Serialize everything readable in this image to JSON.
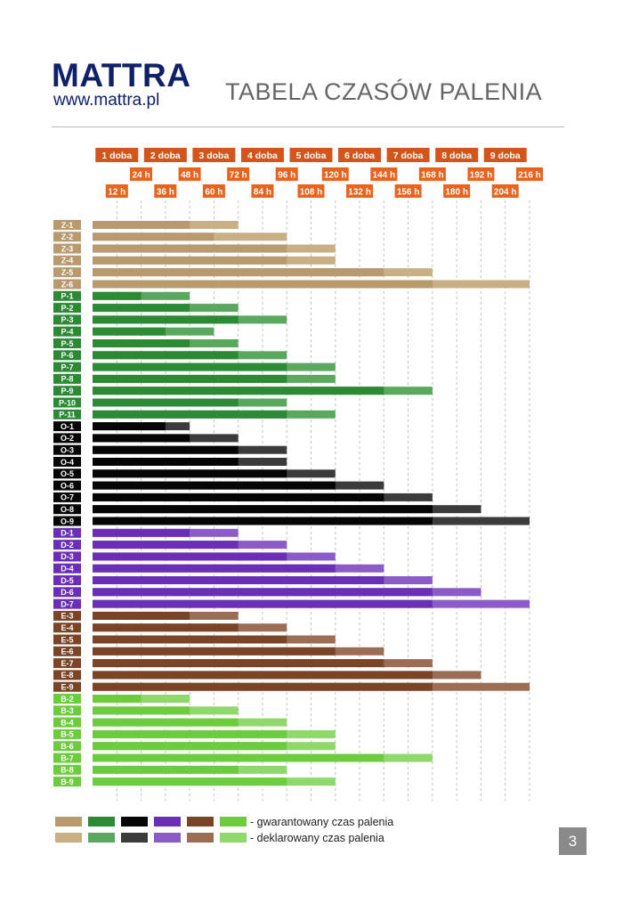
{
  "header": {
    "logo": "MATTRA",
    "url": "www.mattra.pl",
    "title": "TABELA CZASÓW PALENIA"
  },
  "page_number": "3",
  "chart_data": {
    "type": "bar",
    "orientation": "horizontal",
    "stacked": true,
    "xlim": [
      0,
      216
    ],
    "unit": "h",
    "axis_day_labels": [
      "1 doba",
      "2 doba",
      "3 doba",
      "4 doba",
      "5 doba",
      "6 doba",
      "7 doba",
      "8 doba",
      "9 doba"
    ],
    "axis_hour_labels_row1": [
      "24 h",
      "48 h",
      "72 h",
      "96 h",
      "120 h",
      "144 h",
      "168 h",
      "192 h",
      "216 h"
    ],
    "axis_hour_labels_row2": [
      "12 h",
      "36 h",
      "60 h",
      "84 h",
      "108 h",
      "132 h",
      "156 h",
      "180 h",
      "204 h"
    ],
    "grid": true,
    "legend": {
      "placement": "bottom",
      "guaranteed_label": "- gwarantowany czas palenia",
      "declared_label": "- deklarowany czas palenia"
    },
    "groups": [
      {
        "name": "Z",
        "color_guaranteed": "#b99a6e",
        "color_declared": "#c9b084",
        "label_color": "#b99a6e"
      },
      {
        "name": "P",
        "color_guaranteed": "#2c8a35",
        "color_declared": "#5aa85e",
        "label_color": "#2c8a35"
      },
      {
        "name": "O",
        "color_guaranteed": "#050505",
        "color_declared": "#3b3b3b",
        "label_color": "#050505"
      },
      {
        "name": "D",
        "color_guaranteed": "#6a2fb6",
        "color_declared": "#8b5cc8",
        "label_color": "#6a2fb6"
      },
      {
        "name": "E",
        "color_guaranteed": "#7a4427",
        "color_declared": "#9c6d55",
        "label_color": "#7a4427"
      },
      {
        "name": "B",
        "color_guaranteed": "#6ccc3d",
        "color_declared": "#8ed86c",
        "label_color": "#6ccc3d"
      }
    ],
    "series": [
      {
        "name": "Z-1",
        "group": 0,
        "guaranteed": 48,
        "declared": 72
      },
      {
        "name": "Z-2",
        "group": 0,
        "guaranteed": 60,
        "declared": 96
      },
      {
        "name": "Z-3",
        "group": 0,
        "guaranteed": 96,
        "declared": 120
      },
      {
        "name": "Z-4",
        "group": 0,
        "guaranteed": 96,
        "declared": 120
      },
      {
        "name": "Z-5",
        "group": 0,
        "guaranteed": 144,
        "declared": 168
      },
      {
        "name": "Z-6",
        "group": 0,
        "guaranteed": 168,
        "declared": 216
      },
      {
        "name": "P-1",
        "group": 1,
        "guaranteed": 24,
        "declared": 48
      },
      {
        "name": "P-2",
        "group": 1,
        "guaranteed": 48,
        "declared": 72
      },
      {
        "name": "P-3",
        "group": 1,
        "guaranteed": 72,
        "declared": 96
      },
      {
        "name": "P-4",
        "group": 1,
        "guaranteed": 36,
        "declared": 60
      },
      {
        "name": "P-5",
        "group": 1,
        "guaranteed": 48,
        "declared": 72
      },
      {
        "name": "P-6",
        "group": 1,
        "guaranteed": 72,
        "declared": 96
      },
      {
        "name": "P-7",
        "group": 1,
        "guaranteed": 96,
        "declared": 120
      },
      {
        "name": "P-8",
        "group": 1,
        "guaranteed": 96,
        "declared": 120
      },
      {
        "name": "P-9",
        "group": 1,
        "guaranteed": 144,
        "declared": 168
      },
      {
        "name": "P-10",
        "group": 1,
        "guaranteed": 72,
        "declared": 96
      },
      {
        "name": "P-11",
        "group": 1,
        "guaranteed": 96,
        "declared": 120
      },
      {
        "name": "O-1",
        "group": 2,
        "guaranteed": 36,
        "declared": 48
      },
      {
        "name": "O-2",
        "group": 2,
        "guaranteed": 48,
        "declared": 72
      },
      {
        "name": "O-3",
        "group": 2,
        "guaranteed": 72,
        "declared": 96
      },
      {
        "name": "O-4",
        "group": 2,
        "guaranteed": 72,
        "declared": 96
      },
      {
        "name": "O-5",
        "group": 2,
        "guaranteed": 96,
        "declared": 120
      },
      {
        "name": "O-6",
        "group": 2,
        "guaranteed": 120,
        "declared": 144
      },
      {
        "name": "O-7",
        "group": 2,
        "guaranteed": 144,
        "declared": 168
      },
      {
        "name": "O-8",
        "group": 2,
        "guaranteed": 168,
        "declared": 192
      },
      {
        "name": "O-9",
        "group": 2,
        "guaranteed": 168,
        "declared": 216
      },
      {
        "name": "D-1",
        "group": 3,
        "guaranteed": 48,
        "declared": 72
      },
      {
        "name": "D-2",
        "group": 3,
        "guaranteed": 72,
        "declared": 96
      },
      {
        "name": "D-3",
        "group": 3,
        "guaranteed": 96,
        "declared": 120
      },
      {
        "name": "D-4",
        "group": 3,
        "guaranteed": 120,
        "declared": 144
      },
      {
        "name": "D-5",
        "group": 3,
        "guaranteed": 144,
        "declared": 168
      },
      {
        "name": "D-6",
        "group": 3,
        "guaranteed": 168,
        "declared": 192
      },
      {
        "name": "D-7",
        "group": 3,
        "guaranteed": 168,
        "declared": 216
      },
      {
        "name": "E-3",
        "group": 4,
        "guaranteed": 48,
        "declared": 72
      },
      {
        "name": "E-4",
        "group": 4,
        "guaranteed": 72,
        "declared": 96
      },
      {
        "name": "E-5",
        "group": 4,
        "guaranteed": 96,
        "declared": 120
      },
      {
        "name": "E-6",
        "group": 4,
        "guaranteed": 120,
        "declared": 144
      },
      {
        "name": "E-7",
        "group": 4,
        "guaranteed": 144,
        "declared": 168
      },
      {
        "name": "E-8",
        "group": 4,
        "guaranteed": 168,
        "declared": 192
      },
      {
        "name": "E-9",
        "group": 4,
        "guaranteed": 168,
        "declared": 216
      },
      {
        "name": "B-2",
        "group": 5,
        "guaranteed": 24,
        "declared": 48
      },
      {
        "name": "B-3",
        "group": 5,
        "guaranteed": 48,
        "declared": 72
      },
      {
        "name": "B-4",
        "group": 5,
        "guaranteed": 72,
        "declared": 96
      },
      {
        "name": "B-5",
        "group": 5,
        "guaranteed": 96,
        "declared": 120
      },
      {
        "name": "B-6",
        "group": 5,
        "guaranteed": 96,
        "declared": 120
      },
      {
        "name": "B-7",
        "group": 5,
        "guaranteed": 144,
        "declared": 168
      },
      {
        "name": "B-8",
        "group": 5,
        "guaranteed": 72,
        "declared": 96
      },
      {
        "name": "B-9",
        "group": 5,
        "guaranteed": 96,
        "declared": 120
      }
    ]
  }
}
